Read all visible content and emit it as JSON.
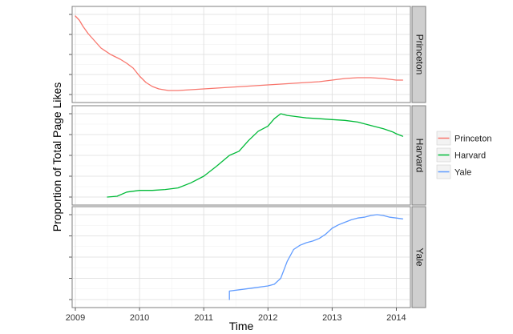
{
  "chart_data": {
    "type": "line",
    "title": "",
    "xlabel": "Time",
    "ylabel": "Proportion of Total Page Likes",
    "xlim": [
      2008.95,
      2014.22
    ],
    "x_ticks": [
      2009,
      2010,
      2011,
      2012,
      2013,
      2014
    ],
    "x_tick_labels": [
      "2009",
      "2010",
      "2011",
      "2012",
      "2013",
      "2014"
    ],
    "grid": true,
    "legend_position": "right",
    "series": [
      {
        "name": "Princeton",
        "color": "#f8766d",
        "x": [
          2009.0,
          2009.06,
          2009.12,
          2009.2,
          2009.3,
          2009.4,
          2009.55,
          2009.7,
          2009.8,
          2009.9,
          2010.0,
          2010.1,
          2010.2,
          2010.3,
          2010.45,
          2010.6,
          2010.8,
          2011.0,
          2011.2,
          2011.4,
          2011.6,
          2011.8,
          2012.0,
          2012.2,
          2012.4,
          2012.6,
          2012.8,
          2013.0,
          2013.2,
          2013.4,
          2013.6,
          2013.8,
          2013.9,
          2014.0,
          2014.1
        ],
        "y": [
          0.98,
          0.93,
          0.85,
          0.76,
          0.67,
          0.58,
          0.5,
          0.44,
          0.39,
          0.33,
          0.23,
          0.15,
          0.1,
          0.07,
          0.05,
          0.05,
          0.06,
          0.07,
          0.08,
          0.09,
          0.1,
          0.11,
          0.12,
          0.13,
          0.14,
          0.15,
          0.16,
          0.18,
          0.2,
          0.21,
          0.21,
          0.2,
          0.19,
          0.18,
          0.18
        ]
      },
      {
        "name": "Harvard",
        "color": "#00ba38",
        "x": [
          2009.5,
          2009.65,
          2009.8,
          2010.0,
          2010.2,
          2010.4,
          2010.6,
          2010.8,
          2011.0,
          2011.2,
          2011.4,
          2011.55,
          2011.7,
          2011.85,
          2012.0,
          2012.1,
          2012.2,
          2012.25,
          2012.3,
          2012.4,
          2012.6,
          2012.8,
          2013.0,
          2013.2,
          2013.4,
          2013.6,
          2013.8,
          2013.95,
          2014.0,
          2014.1
        ],
        "y": [
          0.0,
          0.01,
          0.06,
          0.08,
          0.08,
          0.09,
          0.11,
          0.17,
          0.25,
          0.37,
          0.5,
          0.55,
          0.68,
          0.79,
          0.85,
          0.94,
          1.0,
          0.99,
          0.98,
          0.97,
          0.95,
          0.94,
          0.93,
          0.92,
          0.9,
          0.86,
          0.82,
          0.78,
          0.76,
          0.73
        ]
      },
      {
        "name": "Yale",
        "color": "#619cff",
        "x": [
          2011.4,
          2011.4,
          2011.6,
          2011.8,
          2012.0,
          2012.1,
          2012.2,
          2012.3,
          2012.4,
          2012.5,
          2012.6,
          2012.7,
          2012.8,
          2012.9,
          2013.0,
          2013.1,
          2013.2,
          2013.3,
          2013.4,
          2013.5,
          2013.6,
          2013.7,
          2013.8,
          2013.9,
          2014.0,
          2014.1
        ],
        "y": [
          0.0,
          0.1,
          0.12,
          0.14,
          0.16,
          0.18,
          0.25,
          0.45,
          0.59,
          0.64,
          0.67,
          0.69,
          0.72,
          0.77,
          0.84,
          0.88,
          0.91,
          0.94,
          0.96,
          0.97,
          0.99,
          1.0,
          0.99,
          0.97,
          0.96,
          0.95
        ]
      }
    ],
    "panels": [
      "Princeton",
      "Harvard",
      "Yale"
    ],
    "legend_entries": [
      "Princeton",
      "Harvard",
      "Yale"
    ]
  }
}
